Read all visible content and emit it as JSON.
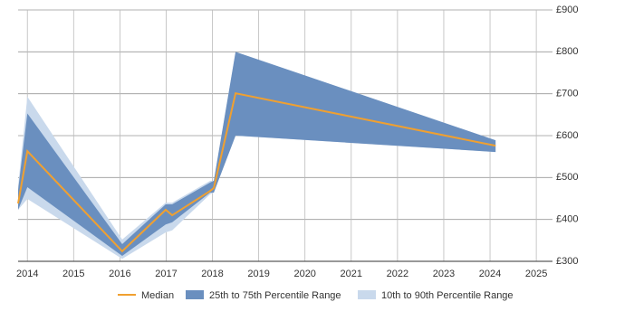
{
  "chart_data": {
    "type": "line",
    "x": [
      2013.8,
      2014,
      2016.05,
      2016.99,
      2017.13,
      2017.95,
      2018.03,
      2018.5,
      2024.12
    ],
    "series": [
      {
        "name": "Median",
        "color": "#f0a030",
        "values": [
          438,
          563,
          324,
          423,
          410,
          468,
          475,
          701,
          576
        ]
      },
      {
        "name": "25th to 75th Percentile Range",
        "color": "#6a8fbf",
        "low": [
          423,
          477,
          313,
          388,
          393,
          464,
          464,
          600,
          561
        ],
        "high": [
          470,
          653,
          341,
          436,
          436,
          488,
          492,
          800,
          589
        ]
      },
      {
        "name": "10th to 90th Percentile Range",
        "color": "#c9d9ec",
        "low": [
          423,
          449,
          306,
          369,
          374,
          460,
          464,
          600,
          561
        ],
        "high": [
          480,
          693,
          352,
          440,
          440,
          492,
          492,
          800,
          589
        ]
      }
    ],
    "xlim": [
      2013.8,
      2025.35
    ],
    "xticks": [
      2014,
      2015,
      2016,
      2017,
      2018,
      2019,
      2020,
      2021,
      2022,
      2023,
      2024,
      2025
    ],
    "ylim": [
      300,
      900
    ],
    "yticks": [
      {
        "value": 300,
        "label": "£300"
      },
      {
        "value": 400,
        "label": "£400"
      },
      {
        "value": 500,
        "label": "£500"
      },
      {
        "value": 600,
        "label": "£600"
      },
      {
        "value": 700,
        "label": "£700"
      },
      {
        "value": 800,
        "label": "£800"
      },
      {
        "value": 900,
        "label": "£900"
      }
    ],
    "grid": true,
    "legend": "bottom"
  }
}
